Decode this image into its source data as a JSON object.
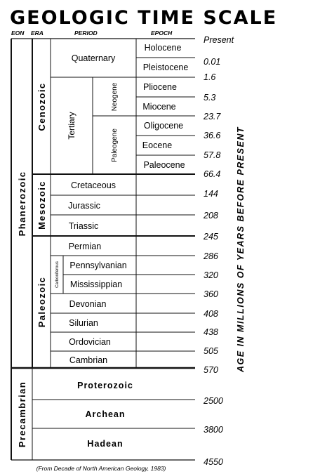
{
  "title": "GEOLOGIC TIME SCALE",
  "headers": {
    "eon": "EON",
    "era": "ERA",
    "period": "PERIOD",
    "epoch": "EPOCH"
  },
  "eons": {
    "phanerozoic": "Phanerozoic",
    "precambrian": "Precambrian"
  },
  "eras": {
    "cenozoic": "Cenozoic",
    "mesozoic": "Mesozoic",
    "paleozoic": "Paleozoic"
  },
  "periods": {
    "quaternary": "Quaternary",
    "tertiary": "Tertiary",
    "neogene": "Neogene",
    "paleogene": "Paleogene",
    "cretaceous": "Cretaceous",
    "jurassic": "Jurassic",
    "triassic": "Triassic",
    "permian": "Permian",
    "carboniferous": "Carboniferous",
    "pennsylvanian": "Pennsylvanian",
    "mississippian": "Mississippian",
    "devonian": "Devonian",
    "silurian": "Silurian",
    "ordovician": "Ordovician",
    "cambrian": "Cambrian"
  },
  "epochs": {
    "holocene": "Holocene",
    "pleistocene": "Pleistocene",
    "pliocene": "Pliocene",
    "miocene": "Miocene",
    "oligocene": "Oligocene",
    "eocene": "Eocene",
    "paleocene": "Paleocene"
  },
  "precambrian_divisions": {
    "proterozoic": "Proterozoic",
    "archean": "Archean",
    "hadean": "Hadean"
  },
  "ages": [
    "Present",
    "0.01",
    "1.6",
    "5.3",
    "23.7",
    "36.6",
    "57.8",
    "66.4",
    "144",
    "208",
    "245",
    "286",
    "320",
    "360",
    "408",
    "438",
    "505",
    "570",
    "2500",
    "3800",
    "4550"
  ],
  "axis_label": "AGE IN MILLIONS OF YEARS BEFORE PRESENT",
  "citation": "(From Decade of North American Geology, 1983)"
}
